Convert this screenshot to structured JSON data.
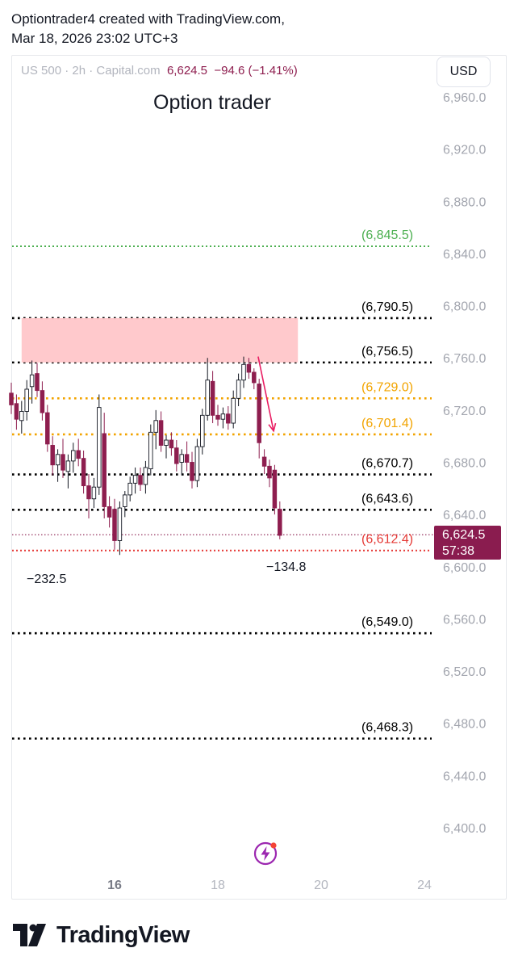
{
  "header": {
    "line1": "Optiontrader4 created with TradingView.com,",
    "line2": "Mar 18, 2026 23:02 UTC+3"
  },
  "ticker": {
    "symbol": "US 500",
    "interval": "2h",
    "exchange": "Capital.com",
    "price": "6,624.5",
    "change": "−94.6 (−1.41%)",
    "separator": "·"
  },
  "currency_button": "USD",
  "annotations": {
    "low_left": "−232.5",
    "low_right": "−134.8"
  },
  "price_tag": {
    "price": "6,624.5",
    "countdown": "57:38"
  },
  "colors": {
    "up_candle": "#ffffff",
    "down_candle": "#8e1e4f",
    "green_level": "#4caf50",
    "orange_level": "#f2a400",
    "red_level": "#e53935",
    "black_level": "#000000",
    "zone": "#ffc6c9",
    "arrow": "#e91e63"
  },
  "footer": {
    "brand": "TradingView"
  },
  "icons": {
    "bolt": "lightning-bolt-icon",
    "logo": "tradingview-logo-icon"
  },
  "chart_data": {
    "type": "candlestick",
    "title": "Option trader",
    "y_axis_ticks": [
      6960.0,
      6920.0,
      6880.0,
      6840.0,
      6800.0,
      6760.0,
      6720.0,
      6680.0,
      6640.0,
      6600.0,
      6560.0,
      6520.0,
      6480.0,
      6440.0,
      6400.0
    ],
    "y_tick_labels": [
      "6,960.0",
      "6,920.0",
      "6,880.0",
      "6,840.0",
      "6,800.0",
      "6,760.0",
      "6,720.0",
      "6,680.0",
      "6,640.0",
      "6,600.0",
      "6,560.0",
      "6,520.0",
      "6,480.0",
      "6,440.0",
      "6,400.0"
    ],
    "ylim": [
      6395,
      6965
    ],
    "x_ticks": [
      "16",
      "18",
      "20",
      "24"
    ],
    "x_bold": [
      "16"
    ],
    "x_tick_values": [
      16,
      18,
      20,
      22
    ],
    "xlim": [
      13.95,
      22.2
    ],
    "levels": [
      {
        "value": 6845.5,
        "label": "(6,845.5)",
        "color": "green"
      },
      {
        "value": 6790.5,
        "label": "(6,790.5)",
        "color": "black"
      },
      {
        "value": 6756.5,
        "label": "(6,756.5)",
        "color": "black"
      },
      {
        "value": 6729.0,
        "label": "(6,729.0)",
        "color": "orange"
      },
      {
        "value": 6701.4,
        "label": "(6,701.4)",
        "color": "orange"
      },
      {
        "value": 6670.7,
        "label": "(6,670.7)",
        "color": "black"
      },
      {
        "value": 6643.6,
        "label": "(6,643.6)",
        "color": "black"
      },
      {
        "value": 6612.4,
        "label": "(6,612.4)",
        "color": "red"
      },
      {
        "value": 6549.0,
        "label": "(6,549.0)",
        "color": "black"
      },
      {
        "value": 6468.3,
        "label": "(6,468.3)",
        "color": "black"
      }
    ],
    "zone": {
      "x0": 14.2,
      "x1": 19.55,
      "y0": 6756.5,
      "y1": 6790.5
    },
    "arrow": {
      "x0": 18.78,
      "y0": 6761,
      "x1": 19.08,
      "y1": 6704
    },
    "candles": [
      [
        14.0,
        6733,
        6741,
        6717,
        6724
      ],
      [
        14.1,
        6725,
        6732,
        6705,
        6713
      ],
      [
        14.2,
        6712,
        6727,
        6702,
        6719
      ],
      [
        14.3,
        6719,
        6743,
        6712,
        6736
      ],
      [
        14.4,
        6738,
        6758,
        6725,
        6747
      ],
      [
        14.5,
        6748,
        6756,
        6730,
        6735
      ],
      [
        14.6,
        6735,
        6742,
        6712,
        6718
      ],
      [
        14.7,
        6718,
        6724,
        6688,
        6694
      ],
      [
        14.8,
        6693,
        6700,
        6670,
        6678
      ],
      [
        14.9,
        6678,
        6690,
        6665,
        6686
      ],
      [
        15.0,
        6686,
        6698,
        6668,
        6674
      ],
      [
        15.1,
        6673,
        6686,
        6660,
        6681
      ],
      [
        15.2,
        6681,
        6695,
        6672,
        6689
      ],
      [
        15.3,
        6689,
        6698,
        6677,
        6683
      ],
      [
        15.4,
        6683,
        6689,
        6656,
        6662
      ],
      [
        15.5,
        6662,
        6671,
        6637,
        6652
      ],
      [
        15.6,
        6652,
        6668,
        6645,
        6661
      ],
      [
        15.7,
        6661,
        6732,
        6655,
        6722
      ],
      [
        15.8,
        6702,
        6718,
        6637,
        6646
      ],
      [
        15.9,
        6646,
        6654,
        6630,
        6638
      ],
      [
        16.0,
        6644,
        6652,
        6613,
        6620
      ],
      [
        16.1,
        6620,
        6650,
        6609,
        6645
      ],
      [
        16.2,
        6646,
        6658,
        6638,
        6655
      ],
      [
        16.3,
        6655,
        6669,
        6650,
        6664
      ],
      [
        16.4,
        6664,
        6676,
        6656,
        6670
      ],
      [
        16.5,
        6670,
        6676,
        6658,
        6663
      ],
      [
        16.6,
        6663,
        6681,
        6656,
        6676
      ],
      [
        16.7,
        6675,
        6709,
        6670,
        6703
      ],
      [
        16.8,
        6703,
        6720,
        6690,
        6712
      ],
      [
        16.9,
        6712,
        6719,
        6688,
        6693
      ],
      [
        17.0,
        6693,
        6701,
        6683,
        6697
      ],
      [
        17.1,
        6697,
        6703,
        6685,
        6691
      ],
      [
        17.2,
        6691,
        6697,
        6673,
        6679
      ],
      [
        17.3,
        6680,
        6690,
        6670,
        6686
      ],
      [
        17.4,
        6686,
        6696,
        6673,
        6680
      ],
      [
        17.5,
        6680,
        6688,
        6660,
        6666
      ],
      [
        17.6,
        6666,
        6698,
        6661,
        6692
      ],
      [
        17.7,
        6692,
        6721,
        6686,
        6716
      ],
      [
        17.8,
        6716,
        6760,
        6712,
        6743
      ],
      [
        17.9,
        6742,
        6750,
        6710,
        6716
      ],
      [
        18.0,
        6716,
        6724,
        6708,
        6713
      ],
      [
        18.1,
        6713,
        6722,
        6706,
        6717
      ],
      [
        18.2,
        6717,
        6723,
        6705,
        6710
      ],
      [
        18.3,
        6710,
        6735,
        6706,
        6729
      ],
      [
        18.4,
        6729,
        6748,
        6723,
        6743
      ],
      [
        18.5,
        6743,
        6761,
        6737,
        6755
      ],
      [
        18.6,
        6755,
        6760,
        6744,
        6749
      ],
      [
        18.7,
        6749,
        6752,
        6736,
        6741
      ],
      [
        18.8,
        6740,
        6744,
        6683,
        6695
      ],
      [
        18.9,
        6684,
        6690,
        6671,
        6677
      ],
      [
        19.0,
        6677,
        6682,
        6661,
        6668
      ],
      [
        19.1,
        6674,
        6678,
        6640,
        6645
      ],
      [
        19.2,
        6644,
        6650,
        6621,
        6624
      ]
    ]
  }
}
